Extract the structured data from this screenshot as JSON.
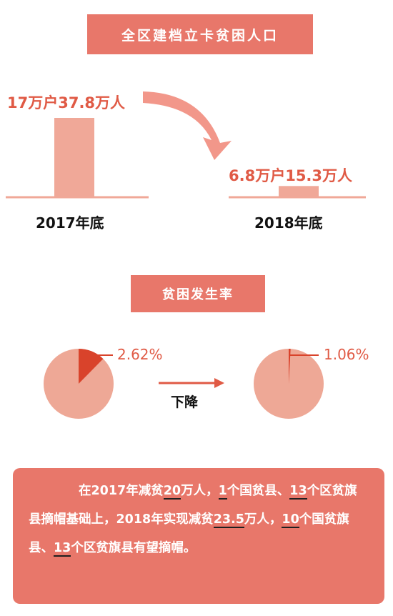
{
  "section1": {
    "title": "全区建档立卡贫困人口",
    "label_2017": "17万户37.8万人",
    "label_2018": "6.8万户15.3万人",
    "year_2017": "2017年底",
    "year_2018": "2018年底"
  },
  "section2": {
    "title": "贫困发生率",
    "pct_2017": "2.62%",
    "pct_2018": "1.06%",
    "arrow_label": "下降"
  },
  "summary": {
    "p1": "在2017年减贫",
    "n1": "20",
    "p2": "万人，",
    "n2": "1",
    "p3": "个国贫县、",
    "n3": "13",
    "p4": "个区贫旗县摘帽基础上，2018年实现减贫",
    "n4": "23.5",
    "p5": "万人，",
    "n5": "10",
    "p6": "个国贫旗县、",
    "n6": "13",
    "p7": "个区贫旗县有望摘帽。"
  },
  "colors": {
    "banner": "#e8776a",
    "bar": "#f0a898",
    "accent": "#e05a45",
    "pie_base": "#eea896",
    "pie_slice": "#d9432b"
  },
  "chart_data": [
    {
      "type": "bar",
      "title": "全区建档立卡贫困人口",
      "categories": [
        "2017年底",
        "2018年底"
      ],
      "series": [
        {
          "values": [
            37.8,
            15.3
          ]
        }
      ],
      "data_labels": [
        "17万户37.8万人",
        "6.8万户15.3万人"
      ]
    },
    {
      "type": "pie",
      "title": "贫困发生率",
      "pies": [
        {
          "category": "2017年底",
          "value": 2.62,
          "label": "2.62%"
        },
        {
          "category": "2018年底",
          "value": 1.06,
          "label": "1.06%"
        }
      ]
    }
  ]
}
